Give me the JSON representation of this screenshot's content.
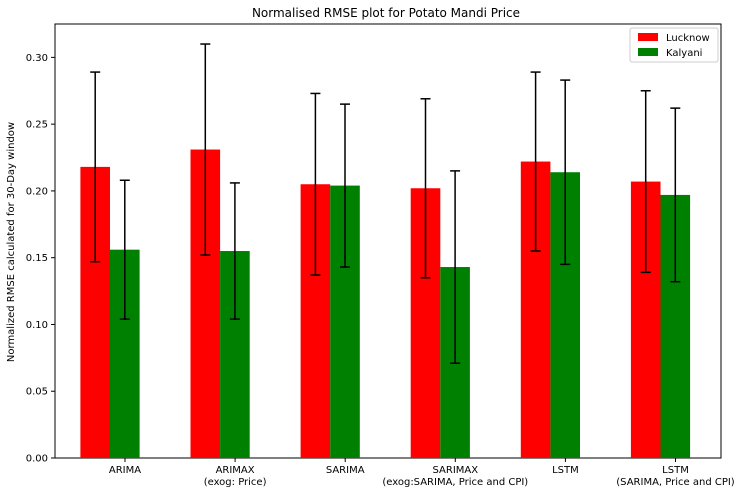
{
  "chart_data": {
    "type": "bar",
    "title": "Normalised RMSE plot for Potato Mandi Price",
    "xlabel": "",
    "ylabel": "Normalized RMSE calculated for 30-Day window",
    "ylim": [
      0,
      0.325
    ],
    "yticks": [
      "0.00",
      "0.05",
      "0.10",
      "0.15",
      "0.20",
      "0.25",
      "0.30"
    ],
    "categories": [
      [
        "ARIMA"
      ],
      [
        "ARIMAX",
        "(exog: Price)"
      ],
      [
        "SARIMA"
      ],
      [
        "SARIMAX",
        "(exog:SARIMA, Price and CPI)"
      ],
      [
        "LSTM"
      ],
      [
        "LSTM",
        "(SARIMA, Price and CPI)"
      ]
    ],
    "series": [
      {
        "name": "Lucknow",
        "color": "#ff0000",
        "values": [
          0.218,
          0.231,
          0.205,
          0.202,
          0.222,
          0.207
        ],
        "error": [
          0.071,
          0.079,
          0.068,
          0.067,
          0.067,
          0.068
        ]
      },
      {
        "name": "Kalyani",
        "color": "#008000",
        "values": [
          0.156,
          0.155,
          0.204,
          0.143,
          0.214,
          0.197
        ],
        "error": [
          0.052,
          0.051,
          0.061,
          0.072,
          0.069,
          0.065
        ]
      }
    ],
    "legend_position": "top-right",
    "grid": false
  }
}
